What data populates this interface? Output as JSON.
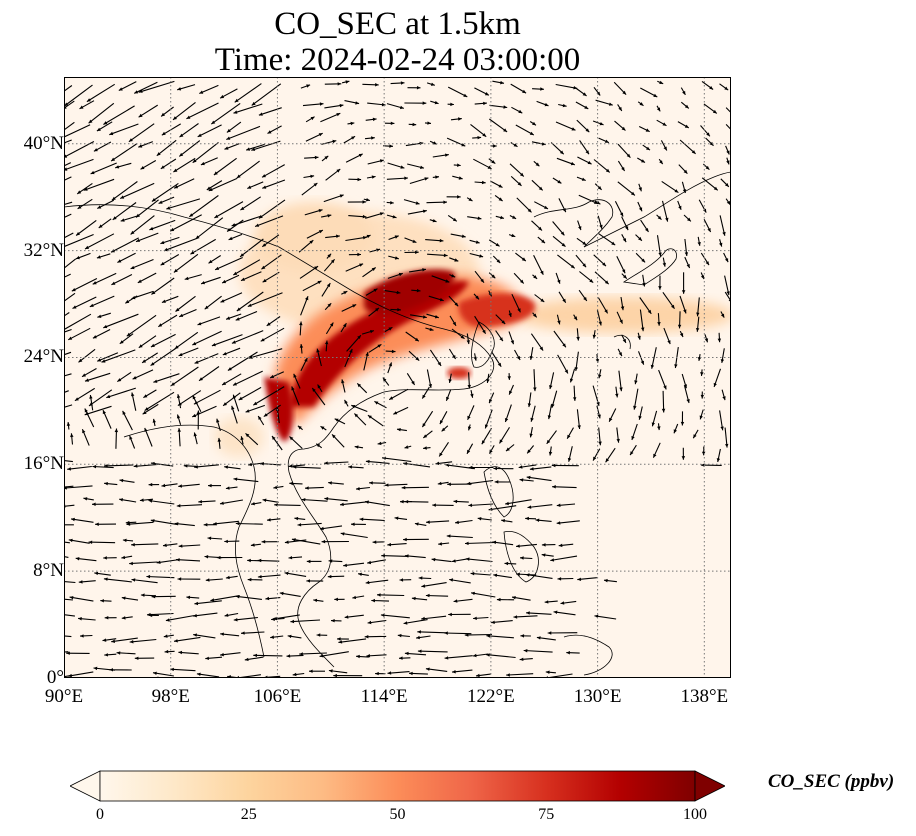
{
  "figure": {
    "title_line1": "CO_SEC at 1.5km",
    "title_line2": "Time: 2024-02-24 03:00:00"
  },
  "map": {
    "projection": "PlateCarree",
    "lon_range": [
      90,
      140
    ],
    "lat_range": [
      0,
      45
    ],
    "gridlines": "dotted",
    "ocean_land_background": "#fff5eb",
    "coastline_color": "#000000",
    "wind_vectors": "black quiver arrows",
    "x_ticks": [
      {
        "value": 90,
        "label": "90°E"
      },
      {
        "value": 98,
        "label": "98°E"
      },
      {
        "value": 106,
        "label": "106°E"
      },
      {
        "value": 114,
        "label": "114°E"
      },
      {
        "value": 122,
        "label": "122°E"
      },
      {
        "value": 130,
        "label": "130°E"
      },
      {
        "value": 138,
        "label": "138°E"
      }
    ],
    "y_ticks": [
      {
        "value": 0,
        "label": "0°"
      },
      {
        "value": 8,
        "label": "8°N"
      },
      {
        "value": 16,
        "label": "16°N"
      },
      {
        "value": 24,
        "label": "24°N"
      },
      {
        "value": 32,
        "label": "32°N"
      },
      {
        "value": 40,
        "label": "40°N"
      }
    ]
  },
  "colorbar": {
    "label": "CO_SEC (ppbv)",
    "colormap": "OrRd",
    "min": 0,
    "max": 100,
    "extend": "both",
    "colors": [
      "#fff7ec",
      "#fee8c8",
      "#fdd49e",
      "#fdbb84",
      "#fc8d59",
      "#ef6548",
      "#d7301f",
      "#b30000",
      "#7f0000"
    ],
    "ticks": [
      {
        "value": 0,
        "label": "0"
      },
      {
        "value": 25,
        "label": "25"
      },
      {
        "value": 50,
        "label": "50"
      },
      {
        "value": 75,
        "label": "75"
      },
      {
        "value": 100,
        "label": "100"
      }
    ]
  }
}
